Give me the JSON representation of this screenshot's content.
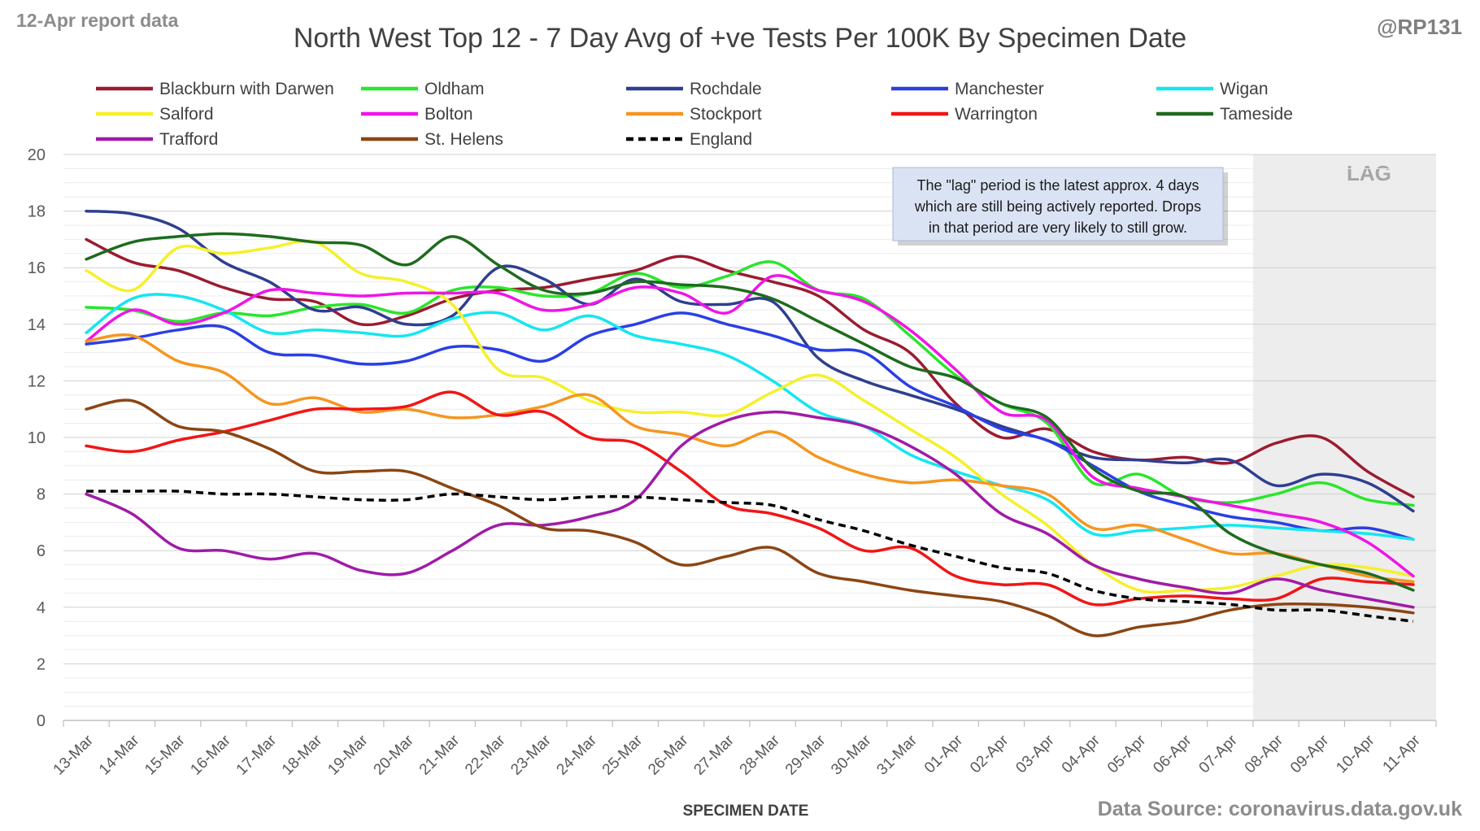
{
  "header": {
    "report_label": "12-Apr report data",
    "handle": "@RP131",
    "title": "North West Top 12 - 7 Day Avg of +ve Tests Per 100K By Specimen Date",
    "source": "Data Source: coronavirus.data.gov.uk"
  },
  "annotation": {
    "lines": [
      "The \"lag\" period is the latest approx. 4 days",
      "which are still being actively reported.  Drops",
      "in that period are very likely to still grow."
    ]
  },
  "chart_data": {
    "type": "line",
    "title": "North West Top 12 - 7 Day Avg of +ve Tests Per 100K By Specimen Date",
    "xlabel": "SPECIMEN DATE",
    "ylabel": "",
    "ylim": [
      0,
      20
    ],
    "yticks": [
      0,
      2,
      4,
      6,
      8,
      10,
      12,
      14,
      16,
      18,
      20
    ],
    "grid": true,
    "legend_position": "top",
    "lag_label": "LAG",
    "lag_start": "08-Apr",
    "lag_end": "11-Apr",
    "x": [
      "13-Mar",
      "14-Mar",
      "15-Mar",
      "16-Mar",
      "17-Mar",
      "18-Mar",
      "19-Mar",
      "20-Mar",
      "21-Mar",
      "22-Mar",
      "23-Mar",
      "24-Mar",
      "25-Mar",
      "26-Mar",
      "27-Mar",
      "28-Mar",
      "29-Mar",
      "30-Mar",
      "31-Mar",
      "01-Apr",
      "02-Apr",
      "03-Apr",
      "04-Apr",
      "05-Apr",
      "06-Apr",
      "07-Apr",
      "08-Apr",
      "09-Apr",
      "10-Apr",
      "11-Apr"
    ],
    "series": [
      {
        "name": "Blackburn with Darwen",
        "color": "#9b1b30",
        "dashed": false,
        "values": [
          17.0,
          16.2,
          15.9,
          15.3,
          14.9,
          14.8,
          14.0,
          14.3,
          14.9,
          15.2,
          15.3,
          15.6,
          15.9,
          16.4,
          15.9,
          15.5,
          15.0,
          13.8,
          13.0,
          11.2,
          10.0,
          10.3,
          9.5,
          9.2,
          9.3,
          9.1,
          9.8,
          10.0,
          8.8,
          7.9
        ]
      },
      {
        "name": "Oldham",
        "color": "#29e62b",
        "dashed": false,
        "values": [
          14.6,
          14.5,
          14.1,
          14.4,
          14.3,
          14.6,
          14.7,
          14.4,
          15.2,
          15.3,
          15.0,
          15.1,
          15.8,
          15.3,
          15.7,
          16.2,
          15.2,
          14.9,
          13.6,
          12.2,
          11.2,
          10.5,
          8.4,
          8.7,
          7.9,
          7.7,
          8.0,
          8.4,
          7.8,
          7.6
        ]
      },
      {
        "name": "Rochdale",
        "color": "#2f3e8f",
        "dashed": false,
        "values": [
          18.0,
          17.9,
          17.4,
          16.2,
          15.5,
          14.5,
          14.6,
          14.0,
          14.3,
          16.0,
          15.6,
          14.7,
          15.6,
          14.8,
          14.7,
          14.8,
          12.8,
          12.0,
          11.5,
          11.0,
          10.4,
          9.9,
          9.3,
          9.2,
          9.1,
          9.2,
          8.3,
          8.7,
          8.4,
          7.4
        ]
      },
      {
        "name": "Manchester",
        "color": "#2a3fe6",
        "dashed": false,
        "values": [
          13.3,
          13.5,
          13.8,
          13.9,
          13.0,
          12.9,
          12.6,
          12.7,
          13.2,
          13.1,
          12.7,
          13.6,
          14.0,
          14.4,
          14.0,
          13.6,
          13.1,
          13.0,
          11.8,
          11.1,
          10.3,
          9.9,
          9.0,
          8.1,
          7.6,
          7.2,
          7.0,
          6.7,
          6.8,
          6.4
        ]
      },
      {
        "name": "Wigan",
        "color": "#14e6f0",
        "dashed": false,
        "values": [
          13.7,
          14.9,
          15.0,
          14.5,
          13.7,
          13.8,
          13.7,
          13.6,
          14.2,
          14.4,
          13.8,
          14.3,
          13.6,
          13.3,
          12.9,
          12.0,
          10.9,
          10.4,
          9.4,
          8.8,
          8.3,
          7.8,
          6.6,
          6.7,
          6.8,
          6.9,
          6.8,
          6.7,
          6.6,
          6.4
        ]
      },
      {
        "name": "Salford",
        "color": "#f5f02a",
        "dashed": false,
        "values": [
          15.9,
          15.2,
          16.7,
          16.5,
          16.7,
          16.9,
          15.8,
          15.5,
          14.7,
          12.4,
          12.1,
          11.3,
          10.9,
          10.9,
          10.8,
          11.6,
          12.2,
          11.3,
          10.3,
          9.3,
          8.0,
          6.9,
          5.5,
          4.6,
          4.6,
          4.7,
          5.1,
          5.5,
          5.4,
          5.1
        ]
      },
      {
        "name": "Bolton",
        "color": "#f014e8",
        "dashed": false,
        "values": [
          13.4,
          14.5,
          14.0,
          14.4,
          15.2,
          15.1,
          15.0,
          15.1,
          15.1,
          15.1,
          14.5,
          14.7,
          15.3,
          15.1,
          14.4,
          15.7,
          15.2,
          14.8,
          13.8,
          12.4,
          10.9,
          10.6,
          8.6,
          8.2,
          7.9,
          7.6,
          7.3,
          7.0,
          6.3,
          5.1
        ]
      },
      {
        "name": "Stockport",
        "color": "#f59620",
        "dashed": false,
        "values": [
          13.4,
          13.6,
          12.7,
          12.3,
          11.2,
          11.4,
          10.9,
          11.0,
          10.7,
          10.8,
          11.1,
          11.5,
          10.4,
          10.1,
          9.7,
          10.2,
          9.3,
          8.7,
          8.4,
          8.5,
          8.3,
          8.0,
          6.8,
          6.9,
          6.4,
          5.9,
          5.9,
          5.5,
          5.1,
          4.9
        ]
      },
      {
        "name": "Warrington",
        "color": "#f21515",
        "dashed": false,
        "values": [
          9.7,
          9.5,
          9.9,
          10.2,
          10.6,
          11.0,
          11.0,
          11.1,
          11.6,
          10.8,
          10.9,
          10.0,
          9.8,
          8.8,
          7.6,
          7.3,
          6.8,
          6.0,
          6.1,
          5.1,
          4.8,
          4.8,
          4.1,
          4.3,
          4.4,
          4.3,
          4.3,
          5.0,
          4.9,
          4.8
        ]
      },
      {
        "name": "Tameside",
        "color": "#1e6b1e",
        "dashed": false,
        "values": [
          16.3,
          16.9,
          17.1,
          17.2,
          17.1,
          16.9,
          16.8,
          16.1,
          17.1,
          16.1,
          15.2,
          15.1,
          15.5,
          15.4,
          15.3,
          14.9,
          14.1,
          13.3,
          12.5,
          12.1,
          11.2,
          10.7,
          8.9,
          8.1,
          7.9,
          6.6,
          5.9,
          5.5,
          5.2,
          4.6
        ]
      },
      {
        "name": "Trafford",
        "color": "#a01ba8",
        "dashed": false,
        "values": [
          8.0,
          7.3,
          6.1,
          6.0,
          5.7,
          5.9,
          5.3,
          5.2,
          6.0,
          6.9,
          6.9,
          7.2,
          7.8,
          9.7,
          10.6,
          10.9,
          10.7,
          10.4,
          9.7,
          8.7,
          7.3,
          6.6,
          5.5,
          5.0,
          4.7,
          4.5,
          5.0,
          4.6,
          4.3,
          4.0
        ]
      },
      {
        "name": "St. Helens",
        "color": "#8b4513",
        "dashed": false,
        "values": [
          11.0,
          11.3,
          10.4,
          10.2,
          9.6,
          8.8,
          8.8,
          8.8,
          8.2,
          7.6,
          6.8,
          6.7,
          6.3,
          5.5,
          5.8,
          6.1,
          5.2,
          4.9,
          4.6,
          4.4,
          4.2,
          3.7,
          3.0,
          3.3,
          3.5,
          3.9,
          4.1,
          4.1,
          4.0,
          3.8
        ]
      },
      {
        "name": "England",
        "color": "#000000",
        "dashed": true,
        "values": [
          8.1,
          8.1,
          8.1,
          8.0,
          8.0,
          7.9,
          7.8,
          7.8,
          8.0,
          7.9,
          7.8,
          7.9,
          7.9,
          7.8,
          7.7,
          7.6,
          7.1,
          6.7,
          6.2,
          5.8,
          5.4,
          5.2,
          4.6,
          4.3,
          4.2,
          4.1,
          3.9,
          3.9,
          3.7,
          3.5
        ]
      }
    ]
  }
}
